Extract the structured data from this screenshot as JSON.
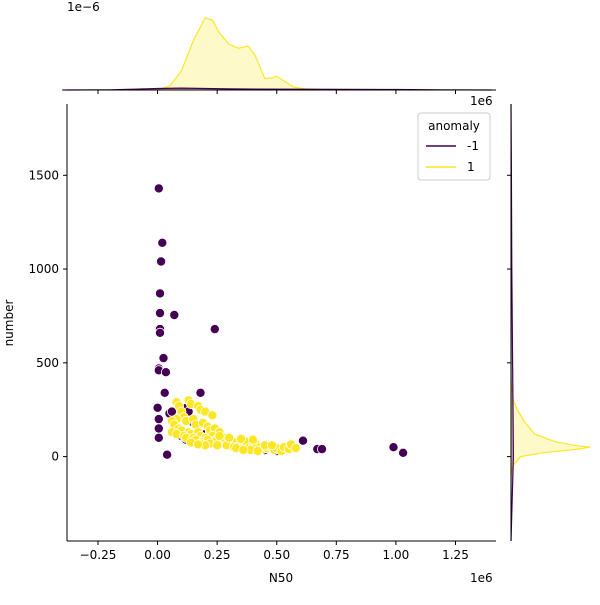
{
  "chart_data": {
    "type": "scatter",
    "title": "",
    "xlabel": "N50",
    "ylabel": "number",
    "x_offset_text": "1e6",
    "marginal_y_offset_text": "1e6",
    "marginal_x_offset_text": "1e−6",
    "xlim": [
      -0.38,
      1.42
    ],
    "ylim": [
      -450,
      1880
    ],
    "xticks": [
      {
        "value": -0.25,
        "label": "−0.25"
      },
      {
        "value": 0.0,
        "label": "0.00"
      },
      {
        "value": 0.25,
        "label": "0.25"
      },
      {
        "value": 0.5,
        "label": "0.50"
      },
      {
        "value": 0.75,
        "label": "0.75"
      },
      {
        "value": 1.0,
        "label": "1.00"
      },
      {
        "value": 1.25,
        "label": "1.25"
      }
    ],
    "yticks": [
      {
        "value": 0,
        "label": "0"
      },
      {
        "value": 500,
        "label": "500"
      },
      {
        "value": 1000,
        "label": "1000"
      },
      {
        "value": 1500,
        "label": "1500"
      }
    ],
    "legend": {
      "title": "anomaly",
      "placement": "top-right",
      "entries": [
        {
          "label": "-1",
          "color": "#440154"
        },
        {
          "label": "1",
          "color": "#fde725"
        }
      ]
    },
    "colors": {
      "anomaly": "#440154",
      "normal": "#fde725",
      "marker_edge": "#ffffff"
    },
    "series": [
      {
        "name": "-1",
        "points": [
          [
            0.005,
            1430
          ],
          [
            0.02,
            1140
          ],
          [
            0.015,
            1040
          ],
          [
            0.01,
            870
          ],
          [
            0.01,
            765
          ],
          [
            0.01,
            680
          ],
          [
            0.01,
            660
          ],
          [
            0.07,
            755
          ],
          [
            0.24,
            680
          ],
          [
            0.025,
            525
          ],
          [
            0.005,
            470
          ],
          [
            0.005,
            460
          ],
          [
            0.035,
            450
          ],
          [
            0.03,
            340
          ],
          [
            0.18,
            340
          ],
          [
            0.0,
            260
          ],
          [
            0.005,
            200
          ],
          [
            0.005,
            150
          ],
          [
            0.005,
            100
          ],
          [
            0.05,
            230
          ],
          [
            0.04,
            10
          ],
          [
            0.06,
            240
          ],
          [
            0.1,
            230
          ],
          [
            0.12,
            260
          ],
          [
            0.13,
            240
          ],
          [
            0.15,
            180
          ],
          [
            0.2,
            120
          ],
          [
            0.22,
            130
          ],
          [
            0.1,
            110
          ],
          [
            0.12,
            90
          ],
          [
            0.16,
            85
          ],
          [
            0.27,
            75
          ],
          [
            0.28,
            90
          ],
          [
            0.3,
            60
          ],
          [
            0.38,
            50
          ],
          [
            0.42,
            40
          ],
          [
            0.45,
            35
          ],
          [
            0.5,
            30
          ],
          [
            0.52,
            40
          ],
          [
            0.61,
            85
          ],
          [
            0.67,
            40
          ],
          [
            0.69,
            40
          ],
          [
            0.99,
            50
          ],
          [
            1.03,
            20
          ]
        ]
      },
      {
        "name": "1",
        "points": [
          [
            0.08,
            290
          ],
          [
            0.09,
            270
          ],
          [
            0.13,
            300
          ],
          [
            0.14,
            280
          ],
          [
            0.17,
            270
          ],
          [
            0.18,
            250
          ],
          [
            0.2,
            240
          ],
          [
            0.23,
            220
          ],
          [
            0.1,
            240
          ],
          [
            0.11,
            210
          ],
          [
            0.08,
            200
          ],
          [
            0.06,
            190
          ],
          [
            0.12,
            190
          ],
          [
            0.15,
            200
          ],
          [
            0.16,
            170
          ],
          [
            0.19,
            180
          ],
          [
            0.21,
            160
          ],
          [
            0.22,
            140
          ],
          [
            0.24,
            150
          ],
          [
            0.26,
            130
          ],
          [
            0.07,
            170
          ],
          [
            0.09,
            150
          ],
          [
            0.1,
            140
          ],
          [
            0.13,
            130
          ],
          [
            0.14,
            120
          ],
          [
            0.17,
            130
          ],
          [
            0.18,
            110
          ],
          [
            0.2,
            100
          ],
          [
            0.23,
            110
          ],
          [
            0.25,
            95
          ],
          [
            0.06,
            130
          ],
          [
            0.08,
            120
          ],
          [
            0.11,
            110
          ],
          [
            0.12,
            100
          ],
          [
            0.15,
            100
          ],
          [
            0.16,
            90
          ],
          [
            0.19,
            80
          ],
          [
            0.21,
            90
          ],
          [
            0.24,
            80
          ],
          [
            0.27,
            70
          ],
          [
            0.28,
            100
          ],
          [
            0.3,
            85
          ],
          [
            0.31,
            65
          ],
          [
            0.33,
            75
          ],
          [
            0.34,
            55
          ],
          [
            0.36,
            60
          ],
          [
            0.37,
            80
          ],
          [
            0.38,
            45
          ],
          [
            0.4,
            55
          ],
          [
            0.41,
            70
          ],
          [
            0.43,
            50
          ],
          [
            0.44,
            40
          ],
          [
            0.46,
            45
          ],
          [
            0.47,
            55
          ],
          [
            0.49,
            35
          ],
          [
            0.5,
            45
          ],
          [
            0.52,
            30
          ],
          [
            0.53,
            50
          ],
          [
            0.55,
            40
          ],
          [
            0.56,
            65
          ],
          [
            0.58,
            45
          ],
          [
            0.29,
            60
          ],
          [
            0.32,
            50
          ],
          [
            0.35,
            40
          ],
          [
            0.39,
            35
          ],
          [
            0.42,
            30
          ],
          [
            0.26,
            110
          ],
          [
            0.22,
            70
          ],
          [
            0.25,
            60
          ],
          [
            0.18,
            70
          ],
          [
            0.2,
            60
          ],
          [
            0.14,
            75
          ],
          [
            0.17,
            65
          ],
          [
            0.3,
            100
          ],
          [
            0.35,
            95
          ],
          [
            0.4,
            90
          ],
          [
            0.45,
            60
          ],
          [
            0.48,
            60
          ],
          [
            0.33,
            45
          ],
          [
            0.36,
            35
          ]
        ]
      }
    ],
    "marginal_x": {
      "type": "kde",
      "series": [
        {
          "name": "1",
          "x": [
            -0.1,
            0.0,
            0.05,
            0.1,
            0.15,
            0.2,
            0.23,
            0.26,
            0.3,
            0.34,
            0.38,
            0.41,
            0.45,
            0.48,
            0.5,
            0.53,
            0.57,
            0.62,
            0.7,
            0.8
          ],
          "density": [
            0.0,
            0.005,
            0.05,
            0.25,
            0.65,
            0.95,
            0.92,
            0.75,
            0.6,
            0.55,
            0.58,
            0.45,
            0.15,
            0.16,
            0.18,
            0.12,
            0.04,
            0.015,
            0.005,
            0.0
          ]
        },
        {
          "name": "-1",
          "x": [
            -0.4,
            -0.2,
            -0.1,
            0.0,
            0.1,
            0.2,
            0.3,
            0.4,
            0.6,
            0.8,
            1.0,
            1.2,
            1.4
          ],
          "density": [
            0.0,
            0.003,
            0.01,
            0.02,
            0.025,
            0.02,
            0.015,
            0.012,
            0.01,
            0.008,
            0.006,
            0.003,
            0.0
          ]
        }
      ]
    },
    "marginal_y": {
      "type": "kde",
      "series": [
        {
          "name": "1",
          "y": [
            -100,
            -50,
            0,
            20,
            40,
            50,
            60,
            80,
            120,
            180,
            250,
            300,
            400
          ],
          "density": [
            0.0,
            0.02,
            0.12,
            0.4,
            0.85,
            1.0,
            0.8,
            0.55,
            0.3,
            0.18,
            0.08,
            0.03,
            0.0
          ]
        },
        {
          "name": "-1",
          "y": [
            -450,
            0,
            500,
            1000,
            1500,
            1880
          ],
          "density": [
            0.0,
            0.03,
            0.02,
            0.01,
            0.005,
            0.0
          ]
        }
      ]
    }
  }
}
